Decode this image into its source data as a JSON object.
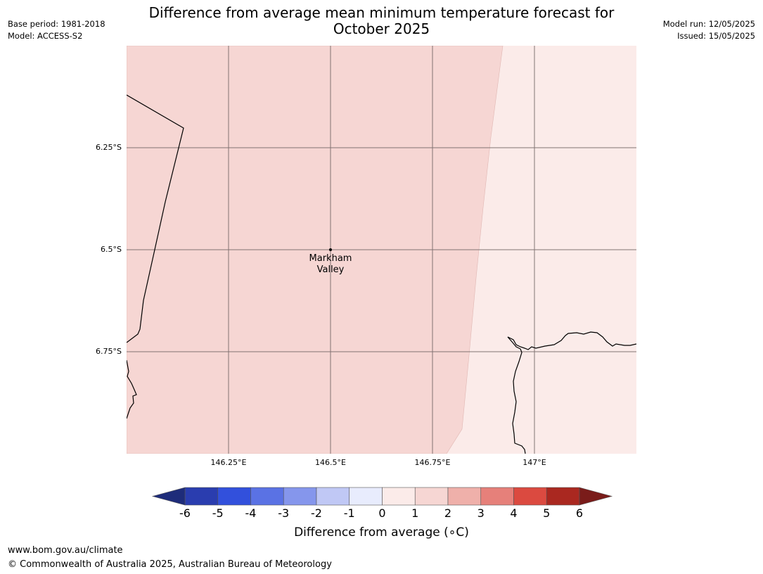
{
  "title": "Difference from average mean minimum temperature forecast for October 2025",
  "meta": {
    "base_period": "Base period: 1981-2018",
    "model": "Model: ACCESS-S2",
    "model_run": "Model run: 12/05/2025",
    "issued": "Issued: 15/05/2025"
  },
  "map": {
    "lat_labels": [
      "6.25°S",
      "6.5°S",
      "6.75°S"
    ],
    "lon_labels": [
      "146.25°E",
      "146.5°E",
      "146.75°E",
      "147°E"
    ],
    "place": {
      "name_line1": "Markham",
      "name_line2": "Valley"
    },
    "regions": [
      {
        "category": "1 to 2",
        "color": "#f6d6d3"
      },
      {
        "category": "0 to 1",
        "color": "#fbebe9"
      }
    ]
  },
  "colorbar": {
    "label": "Difference from average (∘C)",
    "tick_labels": [
      "-6",
      "-5",
      "-4",
      "-3",
      "-2",
      "-1",
      "0",
      "1",
      "2",
      "3",
      "4",
      "5",
      "6"
    ],
    "colors": {
      "below_min": "#1e2c7a",
      "bins": [
        "#2a3daf",
        "#3250dc",
        "#5a72e4",
        "#8596ec",
        "#c0c8f5",
        "#e8ecfd",
        "#fbebe9",
        "#f6d6d3",
        "#efb0aa",
        "#e6807a",
        "#db4a40",
        "#aa2820"
      ],
      "above_max": "#7a1c1a"
    }
  },
  "footer": {
    "url": "www.bom.gov.au/climate",
    "copyright": "© Commonwealth of Australia 2025, Australian Bureau of Meteorology"
  }
}
